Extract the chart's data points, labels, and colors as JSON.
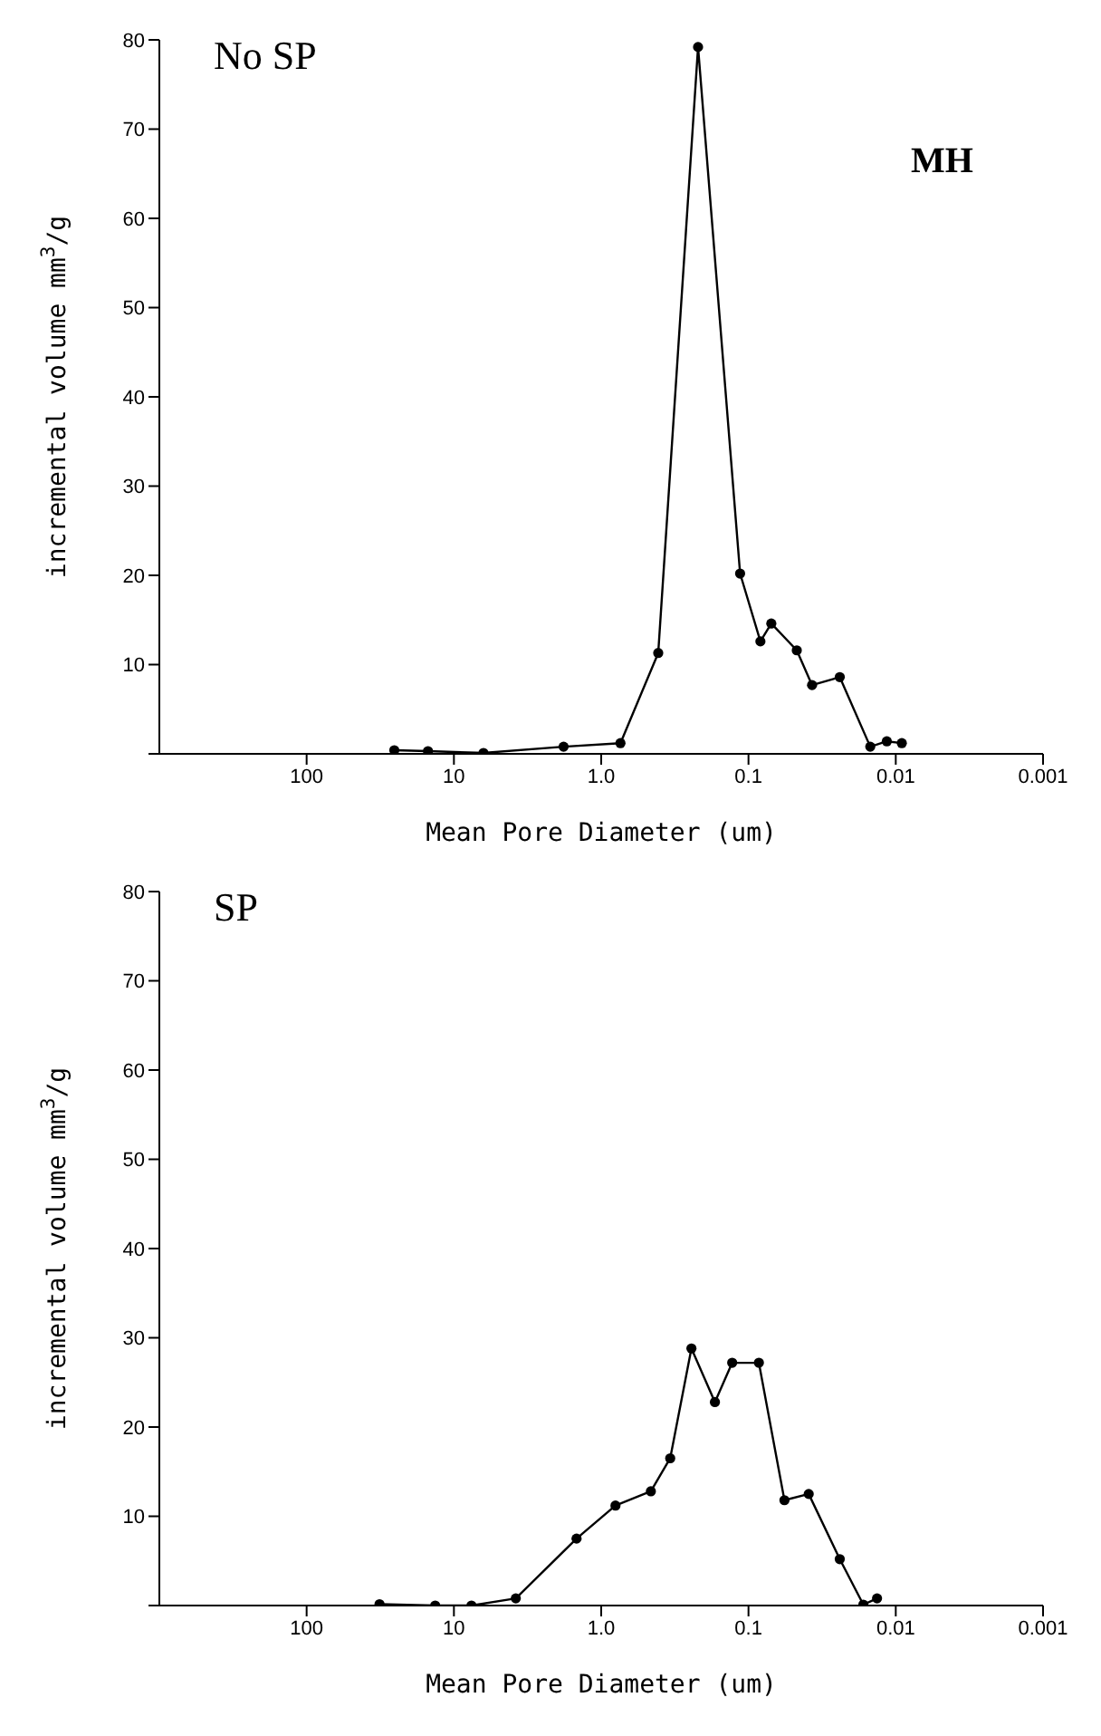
{
  "chart_data": [
    {
      "type": "line",
      "xlabel": "Mean Pore Diameter (um)",
      "ylabel": "incremental volume mm$^{3}$/g",
      "annotations": [
        "No SP",
        "MH"
      ],
      "log": "x",
      "marker": "circle",
      "color": "#000000",
      "x": [
        25.4,
        15,
        6.3,
        1.8,
        0.74,
        0.41,
        0.22,
        0.114,
        0.083,
        0.07,
        0.047,
        0.037,
        0.024,
        0.0149,
        0.0115,
        0.0091
      ],
      "values": [
        0.4,
        0.3,
        0.1,
        0.8,
        1.2,
        11.3,
        79.2,
        20.2,
        12.6,
        14.6,
        11.6,
        7.7,
        8.6,
        0.8,
        1.4,
        1.2
      ],
      "xlim": [
        1000,
        0.001
      ],
      "xticks": [
        100,
        10,
        {
          "value": 1,
          "label": "1.0"
        },
        0.1,
        0.01,
        0.001
      ],
      "ylim": [
        0,
        80
      ],
      "yticks": [
        {
          "value": 0,
          "label": null
        },
        10,
        20,
        30,
        40,
        50,
        60,
        70,
        80
      ]
    },
    {
      "type": "line",
      "xlabel": "Mean Pore Diameter (um)",
      "ylabel": "incremental volume mm$^{3}$/g",
      "annotations": [
        "SP"
      ],
      "log": "x",
      "marker": "circle",
      "color": "#000000",
      "x": [
        32,
        13.4,
        7.6,
        3.8,
        1.47,
        0.8,
        0.46,
        0.34,
        0.244,
        0.169,
        0.129,
        0.085,
        0.057,
        0.039,
        0.024,
        0.0166,
        0.0134
      ],
      "values": [
        0.15,
        0,
        0,
        0.8,
        7.5,
        11.2,
        12.8,
        16.5,
        28.8,
        22.8,
        27.2,
        27.2,
        11.8,
        12.5,
        5.2,
        0.1,
        0.8
      ],
      "xlim": [
        1000,
        0.001
      ],
      "xticks": [
        100,
        10,
        {
          "value": 1,
          "label": "1.0"
        },
        0.1,
        0.01,
        0.001
      ],
      "ylim": [
        0,
        80
      ],
      "yticks": [
        {
          "value": 0,
          "label": null
        },
        10,
        20,
        30,
        40,
        50,
        60,
        70,
        80
      ]
    }
  ]
}
